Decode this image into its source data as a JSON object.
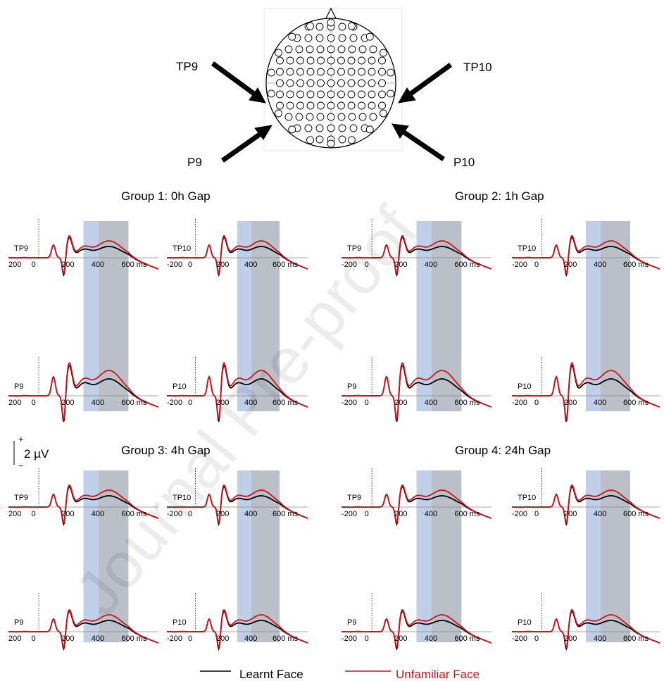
{
  "head_labels": {
    "tp9": "TP9",
    "tp10": "TP10",
    "p9": "P9",
    "p10": "P10"
  },
  "groups": [
    {
      "title": "Group 1: 0h Gap"
    },
    {
      "title": "Group 2: 1h Gap"
    },
    {
      "title": "Group 3: 4h Gap"
    },
    {
      "title": "Group 4: 24h Gap"
    }
  ],
  "scale_bar": {
    "plus": "+",
    "minus": "−",
    "label": "2 µV"
  },
  "x_ticks": [
    "200",
    "0",
    "200",
    "400",
    "600 ms"
  ],
  "x_ticks_neg": [
    "-200",
    "0",
    "200",
    "400",
    "600 ms"
  ],
  "legend": [
    {
      "label": "Learnt Face",
      "color": "#000000"
    },
    {
      "label": "Unfamiliar Face",
      "color": "#d0141c"
    }
  ],
  "colors": {
    "window1": "#b9c9e6",
    "window2": "#b4b8c2",
    "learnt": "#000000",
    "unfamiliar": "#d0141c"
  },
  "watermark": "Journal Pre-proof"
}
